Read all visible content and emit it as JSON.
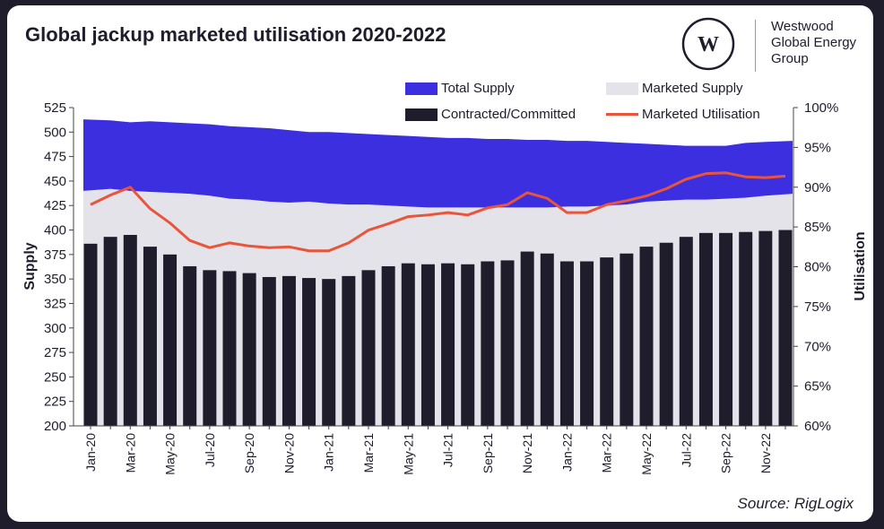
{
  "title": "Global jackup marketed utilisation 2020-2022",
  "logo": {
    "lines": [
      "Westwood",
      "Global Energy",
      "Group"
    ],
    "mark": "W"
  },
  "source": "Source: RigLogix",
  "colors": {
    "total_supply": "#3b2fe0",
    "marketed_supply": "#e4e3ea",
    "contracted": "#1f1c2c",
    "utilisation": "#e8553a"
  },
  "chart_data": {
    "type": "bar+area+line",
    "title": "Global jackup marketed utilisation 2020-2022",
    "ylabel": "Supply",
    "y2label": "Utilisation",
    "ylim": [
      200,
      525
    ],
    "y2lim": [
      60,
      100
    ],
    "yticks": [
      "200",
      "225",
      "250",
      "275",
      "300",
      "325",
      "350",
      "375",
      "400",
      "425",
      "450",
      "475",
      "500",
      "525"
    ],
    "y2ticks": [
      "60%",
      "65%",
      "70%",
      "75%",
      "80%",
      "85%",
      "90%",
      "95%",
      "100%"
    ],
    "legend": [
      "Total Supply",
      "Marketed Supply",
      "Contracted/Committed",
      "Marketed Utilisation"
    ],
    "legend_position": "top",
    "categories": [
      "Jan-20",
      "Feb-20",
      "Mar-20",
      "Apr-20",
      "May-20",
      "Jun-20",
      "Jul-20",
      "Aug-20",
      "Sep-20",
      "Oct-20",
      "Nov-20",
      "Dec-20",
      "Jan-21",
      "Feb-21",
      "Mar-21",
      "Apr-21",
      "May-21",
      "Jun-21",
      "Jul-21",
      "Aug-21",
      "Sep-21",
      "Oct-21",
      "Nov-21",
      "Dec-21",
      "Jan-22",
      "Feb-22",
      "Mar-22",
      "Apr-22",
      "May-22",
      "Jun-22",
      "Jul-22",
      "Aug-22",
      "Sep-22",
      "Oct-22",
      "Nov-22",
      "Dec-22"
    ],
    "xtick_labels": [
      "Jan-20",
      "Mar-20",
      "May-20",
      "Jul-20",
      "Sep-20",
      "Nov-20",
      "Jan-21",
      "Mar-21",
      "May-21",
      "Jul-21",
      "Sep-21",
      "Nov-21",
      "Jan-22",
      "Mar-22",
      "May-22",
      "Jul-22",
      "Sep-22",
      "Nov-22"
    ],
    "series": [
      {
        "name": "Total Supply",
        "type": "area",
        "axis": "left",
        "values": [
          513,
          512,
          510,
          511,
          510,
          509,
          508,
          506,
          505,
          504,
          502,
          500,
          500,
          499,
          498,
          497,
          496,
          495,
          494,
          494,
          493,
          493,
          492,
          492,
          491,
          491,
          490,
          489,
          488,
          487,
          486,
          486,
          486,
          489,
          490,
          491
        ]
      },
      {
        "name": "Marketed Supply",
        "type": "area",
        "axis": "left",
        "values": [
          440,
          442,
          440,
          439,
          438,
          437,
          435,
          432,
          431,
          429,
          428,
          429,
          427,
          426,
          426,
          425,
          424,
          423,
          423,
          423,
          423,
          423,
          423,
          423,
          424,
          424,
          425,
          426,
          429,
          430,
          431,
          431,
          432,
          433,
          435,
          437
        ]
      },
      {
        "name": "Contracted/Committed",
        "type": "bar",
        "axis": "left",
        "values": [
          386,
          393,
          395,
          383,
          375,
          363,
          359,
          358,
          356,
          352,
          353,
          351,
          350,
          353,
          359,
          363,
          366,
          365,
          366,
          365,
          368,
          369,
          378,
          376,
          368,
          368,
          372,
          376,
          383,
          387,
          393,
          397,
          397,
          398,
          399,
          400
        ]
      },
      {
        "name": "Marketed Utilisation",
        "type": "line",
        "axis": "right",
        "values": [
          87.8,
          89.0,
          90.0,
          87.3,
          85.5,
          83.3,
          82.4,
          83.0,
          82.6,
          82.4,
          82.5,
          82.0,
          82.0,
          83.0,
          84.6,
          85.4,
          86.3,
          86.5,
          86.8,
          86.5,
          87.4,
          87.8,
          89.3,
          88.6,
          86.8,
          86.8,
          87.8,
          88.3,
          88.9,
          89.8,
          91.0,
          91.7,
          91.8,
          91.3,
          91.2,
          91.4
        ]
      }
    ]
  }
}
